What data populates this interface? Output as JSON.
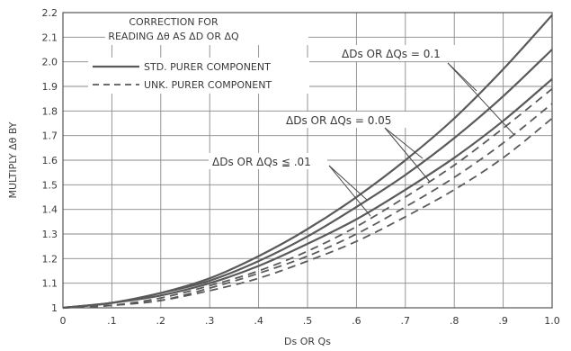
{
  "chart_data": {
    "type": "line",
    "title": "",
    "xlabel": "Ds OR Qs",
    "ylabel": "MULTIPLY Δθ BY",
    "xlim": [
      0,
      1.0
    ],
    "ylim": [
      1,
      2.2
    ],
    "grid": true,
    "x_tick_labels": [
      "0",
      ".1",
      ".2",
      ".3",
      ".4",
      ".5",
      ".6",
      ".7",
      ".8",
      ".9",
      "1.0"
    ],
    "y_tick_labels": [
      "1",
      "1.1",
      "1.2",
      "1.3",
      "1.4",
      "1.5",
      "1.6",
      "1.7",
      "1.8",
      "1.9",
      "2.0",
      "2.1",
      "2.2"
    ],
    "note_lines": [
      "CORRECTION FOR",
      "READING Δθ AS ΔD OR ΔQ"
    ],
    "legend": [
      {
        "label": "STD. PURER COMPONENT",
        "style": "solid"
      },
      {
        "label": "UNK. PURER COMPONENT",
        "style": "dashed"
      }
    ],
    "annotations": [
      {
        "text": "ΔDs OR ΔQs = 0.1",
        "targets": [
          "std_01",
          "unk_01"
        ]
      },
      {
        "text": "ΔDs OR ΔQs = 0.05",
        "targets": [
          "std_005",
          "unk_005"
        ]
      },
      {
        "text": "ΔDs OR ΔQs ≦ .01",
        "targets": [
          "std_001",
          "unk_001"
        ]
      }
    ],
    "series": [
      {
        "id": "std_01",
        "style": "solid",
        "x": [
          0,
          0.1,
          0.2,
          0.3,
          0.4,
          0.5,
          0.6,
          0.7,
          0.8,
          0.9,
          1.0
        ],
        "y": [
          1.0,
          1.02,
          1.06,
          1.12,
          1.21,
          1.32,
          1.45,
          1.6,
          1.77,
          1.97,
          2.19
        ]
      },
      {
        "id": "std_005",
        "style": "solid",
        "x": [
          0,
          0.1,
          0.2,
          0.3,
          0.4,
          0.5,
          0.6,
          0.7,
          0.8,
          0.9,
          1.0
        ],
        "y": [
          1.0,
          1.02,
          1.06,
          1.11,
          1.19,
          1.29,
          1.41,
          1.54,
          1.69,
          1.86,
          2.05
        ]
      },
      {
        "id": "std_001",
        "style": "solid",
        "x": [
          0,
          0.1,
          0.2,
          0.3,
          0.4,
          0.5,
          0.6,
          0.7,
          0.8,
          0.9,
          1.0
        ],
        "y": [
          1.0,
          1.02,
          1.05,
          1.1,
          1.17,
          1.26,
          1.36,
          1.48,
          1.61,
          1.76,
          1.93
        ]
      },
      {
        "id": "unk_01",
        "style": "dashed",
        "x": [
          0,
          0.1,
          0.2,
          0.3,
          0.4,
          0.5,
          0.6,
          0.7,
          0.8,
          0.9,
          1.0
        ],
        "y": [
          1.0,
          1.01,
          1.04,
          1.09,
          1.15,
          1.23,
          1.33,
          1.45,
          1.58,
          1.73,
          1.89
        ]
      },
      {
        "id": "unk_005",
        "style": "dashed",
        "x": [
          0,
          0.1,
          0.2,
          0.3,
          0.4,
          0.5,
          0.6,
          0.7,
          0.8,
          0.9,
          1.0
        ],
        "y": [
          1.0,
          1.01,
          1.03,
          1.08,
          1.14,
          1.21,
          1.3,
          1.41,
          1.53,
          1.67,
          1.83
        ]
      },
      {
        "id": "unk_001",
        "style": "dashed",
        "x": [
          0,
          0.1,
          0.2,
          0.3,
          0.4,
          0.5,
          0.6,
          0.7,
          0.8,
          0.9,
          1.0
        ],
        "y": [
          1.0,
          1.01,
          1.03,
          1.07,
          1.12,
          1.19,
          1.27,
          1.37,
          1.48,
          1.61,
          1.77
        ]
      }
    ]
  }
}
